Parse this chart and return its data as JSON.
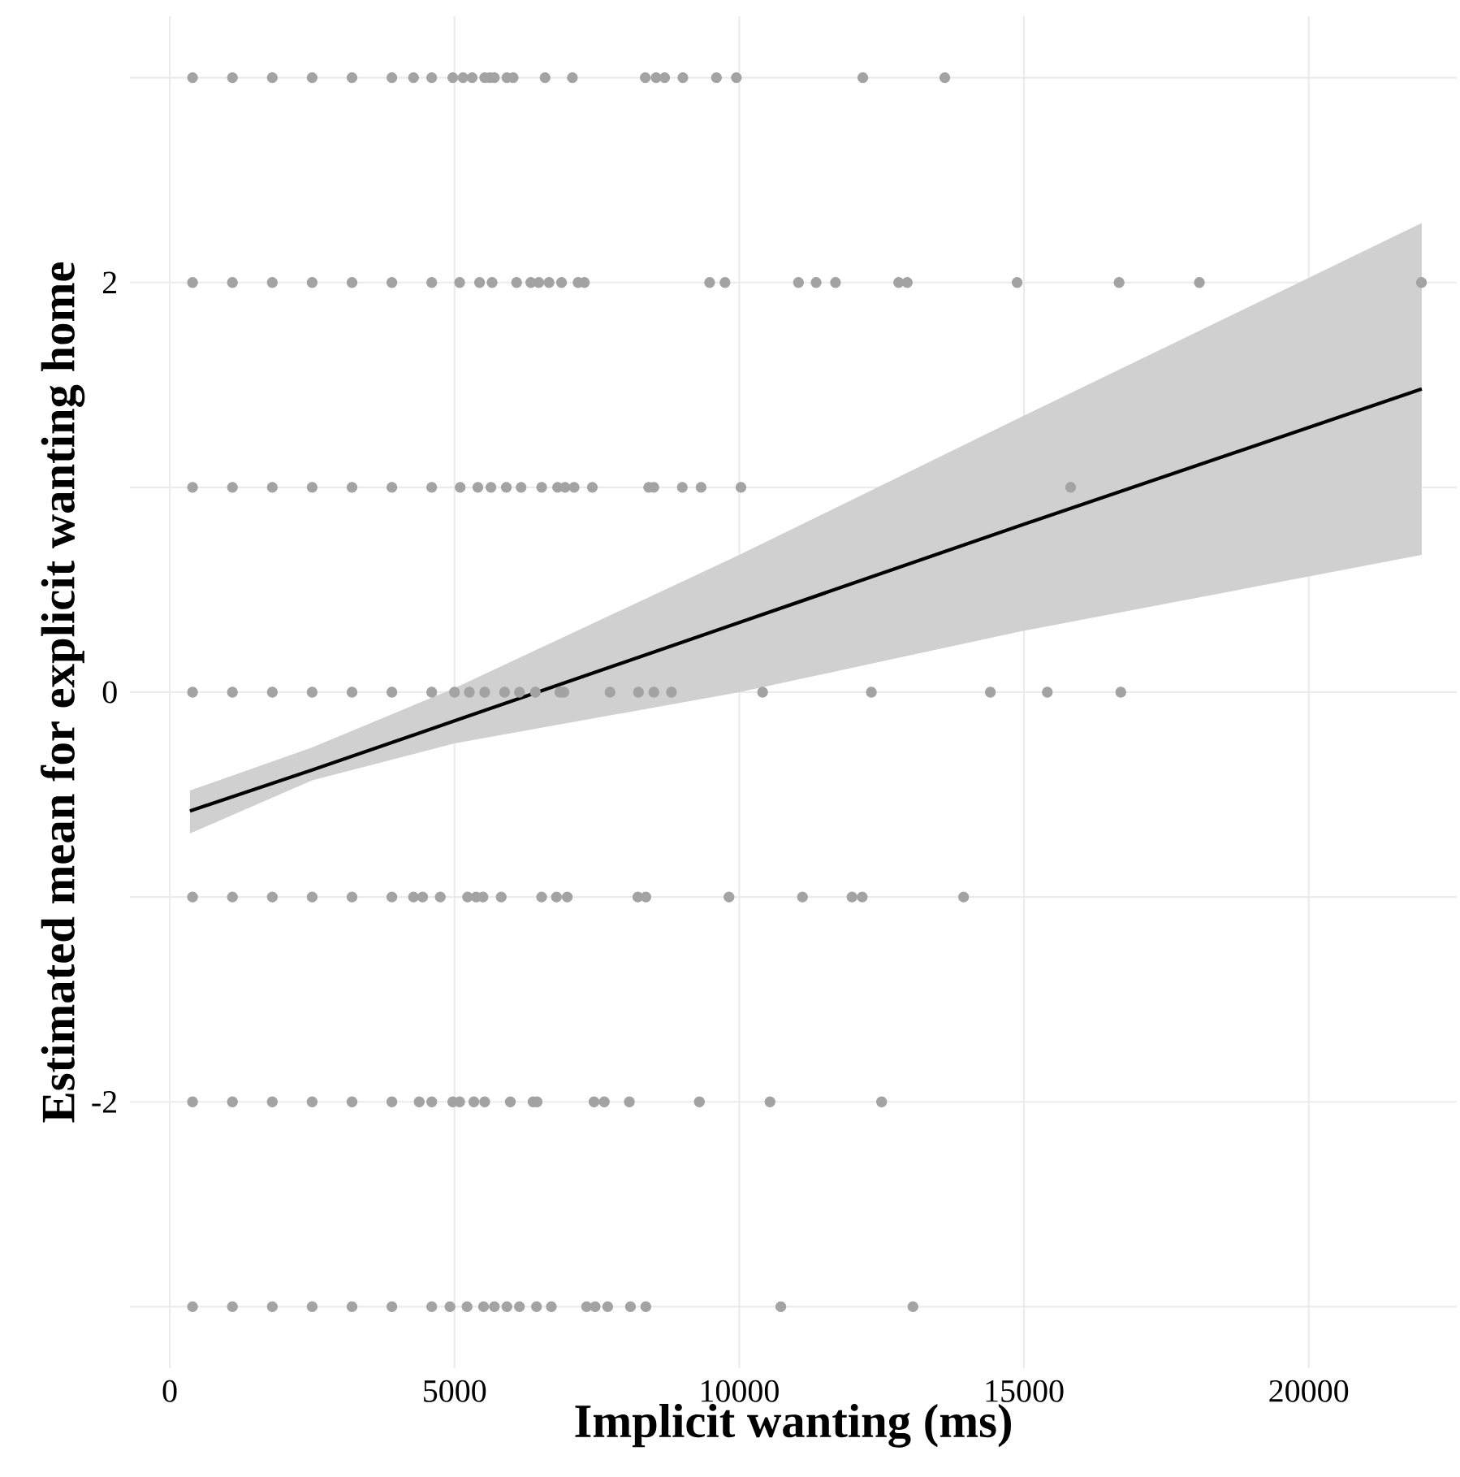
{
  "chart_data": {
    "type": "scatter",
    "xlabel": "Implicit wanting (ms)",
    "ylabel": "Estimated mean for explicit wanting home",
    "xlim": [
      -700,
      22600
    ],
    "ylim": [
      -3.3,
      3.3
    ],
    "xticks": [
      0,
      5000,
      10000,
      15000,
      20000
    ],
    "yticks": [
      -2,
      0,
      2
    ],
    "grid": true,
    "series": [
      {
        "color": "#a3a3a3",
        "marker": "circle",
        "x": [
          400,
          1100,
          1800,
          2500,
          3200,
          3900,
          4280,
          4600,
          4970,
          5150,
          5310,
          5530,
          5620,
          5700,
          5920,
          6030,
          6590,
          7070,
          8350,
          8540,
          8690,
          9010,
          9600,
          9950,
          12170,
          13610,
          400,
          1100,
          1800,
          2500,
          3200,
          3900,
          4600,
          5090,
          5440,
          5660,
          6090,
          6340,
          6480,
          6660,
          6880,
          7170,
          7280,
          9480,
          9750,
          11040,
          11350,
          11690,
          12800,
          12950,
          14880,
          16670,
          18080,
          21980,
          400,
          1100,
          1800,
          2500,
          3200,
          3900,
          4600,
          5100,
          5410,
          5640,
          5910,
          6170,
          6530,
          6810,
          6940,
          7100,
          7420,
          8410,
          8500,
          9000,
          9330,
          10030,
          15820,
          400,
          1100,
          1800,
          2500,
          3200,
          3900,
          4600,
          5000,
          5260,
          5530,
          5880,
          6140,
          6420,
          6850,
          6920,
          7730,
          8230,
          8500,
          8810,
          10410,
          12320,
          14410,
          15410,
          16700,
          400,
          1100,
          1800,
          2500,
          3200,
          3900,
          4280,
          4440,
          4750,
          5230,
          5380,
          5500,
          5820,
          6530,
          6790,
          6980,
          8220,
          8360,
          9820,
          11110,
          11980,
          12160,
          13940,
          400,
          1100,
          1800,
          2500,
          3200,
          3900,
          4380,
          4600,
          4970,
          5090,
          5340,
          5530,
          5980,
          6380,
          6450,
          7450,
          7630,
          8070,
          9300,
          10540,
          12500,
          400,
          1100,
          1800,
          2500,
          3200,
          3900,
          4600,
          4920,
          5220,
          5510,
          5700,
          5920,
          6140,
          6440,
          6700,
          7320,
          7470,
          7690,
          8090,
          8360,
          10730,
          13050
        ],
        "values": [
          3,
          3,
          3,
          3,
          3,
          3,
          3,
          3,
          3,
          3,
          3,
          3,
          3,
          3,
          3,
          3,
          3,
          3,
          3,
          3,
          3,
          3,
          3,
          3,
          3,
          3,
          2,
          2,
          2,
          2,
          2,
          2,
          2,
          2,
          2,
          2,
          2,
          2,
          2,
          2,
          2,
          2,
          2,
          2,
          2,
          2,
          2,
          2,
          2,
          2,
          2,
          2,
          2,
          2,
          1,
          1,
          1,
          1,
          1,
          1,
          1,
          1,
          1,
          1,
          1,
          1,
          1,
          1,
          1,
          1,
          1,
          1,
          1,
          1,
          1,
          1,
          1,
          0,
          0,
          0,
          0,
          0,
          0,
          0,
          0,
          0,
          0,
          0,
          0,
          0,
          0,
          0,
          0,
          0,
          0,
          0,
          0,
          0,
          0,
          0,
          0,
          -1,
          -1,
          -1,
          -1,
          -1,
          -1,
          -1,
          -1,
          -1,
          -1,
          -1,
          -1,
          -1,
          -1,
          -1,
          -1,
          -1,
          -1,
          -1,
          -1,
          -1,
          -1,
          -1,
          -2,
          -2,
          -2,
          -2,
          -2,
          -2,
          -2,
          -2,
          -2,
          -2,
          -2,
          -2,
          -2,
          -2,
          -2,
          -2,
          -2,
          -2,
          -2,
          -2,
          -2,
          -3,
          -3,
          -3,
          -3,
          -3,
          -3,
          -3,
          -3,
          -3,
          -3,
          -3,
          -3,
          -3,
          -3,
          -3,
          -3,
          -3,
          -3,
          -3,
          -3,
          -3,
          -3
        ]
      },
      {
        "type": "line",
        "color": "#000000",
        "x": [
          353,
          2500,
          5000,
          10000,
          15000,
          21985
        ],
        "values": [
          -0.58,
          -0.38,
          -0.14,
          0.34,
          0.82,
          1.48
        ],
        "lower": [
          -0.69,
          -0.43,
          -0.25,
          0.0,
          0.3,
          0.67
        ],
        "upper": [
          -0.48,
          -0.27,
          0.02,
          0.67,
          1.35,
          2.29
        ]
      }
    ]
  }
}
